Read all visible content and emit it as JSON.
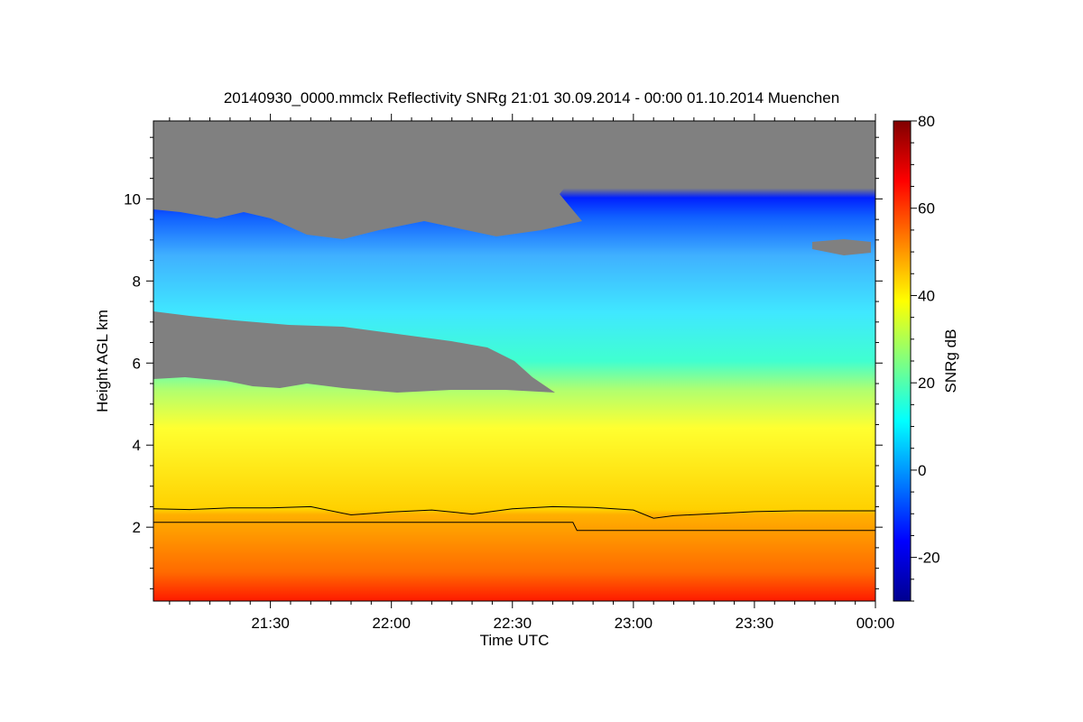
{
  "chart_data": {
    "type": "heatmap",
    "title": "20140930_0000.mmclx Reflectivity SNRg   21:01 30.09.2014 - 00:00 01.10.2014 Muenchen",
    "xlabel": "Time UTC",
    "ylabel": "Height AGL km",
    "colorbar_label": "SNRg dB",
    "xlim": [
      "21:01",
      "00:00"
    ],
    "x_ticks": [
      "21:30",
      "22:00",
      "22:30",
      "23:00",
      "23:30",
      "00:00"
    ],
    "ylim": [
      0.2,
      11.9
    ],
    "y_ticks": [
      2,
      4,
      6,
      8,
      10
    ],
    "clim": [
      -30,
      80
    ],
    "colorbar_ticks": [
      -20,
      0,
      20,
      40,
      60,
      80
    ],
    "colormap": [
      "#00008f",
      "#0000ff",
      "#0080ff",
      "#00ffff",
      "#80ff80",
      "#ffff00",
      "#ff8000",
      "#ff0000",
      "#800000"
    ],
    "no_signal_color": "#808080",
    "lines": [
      {
        "x": [
          "21:01",
          "21:10",
          "21:20",
          "21:30",
          "21:40",
          "21:50",
          "22:00",
          "22:10",
          "22:20",
          "22:30",
          "22:40",
          "22:50",
          "23:00",
          "23:05",
          "23:10",
          "23:20",
          "23:30",
          "23:40",
          "23:50",
          "00:00"
        ],
        "y": [
          2.45,
          2.43,
          2.47,
          2.47,
          2.5,
          2.3,
          2.37,
          2.42,
          2.32,
          2.45,
          2.5,
          2.48,
          2.42,
          2.22,
          2.28,
          2.33,
          2.38,
          2.4,
          2.4,
          2.4
        ]
      },
      {
        "x": [
          "21:01",
          "22:45",
          "22:46",
          "00:00"
        ],
        "y": [
          2.12,
          2.12,
          1.92,
          1.92
        ]
      }
    ]
  }
}
